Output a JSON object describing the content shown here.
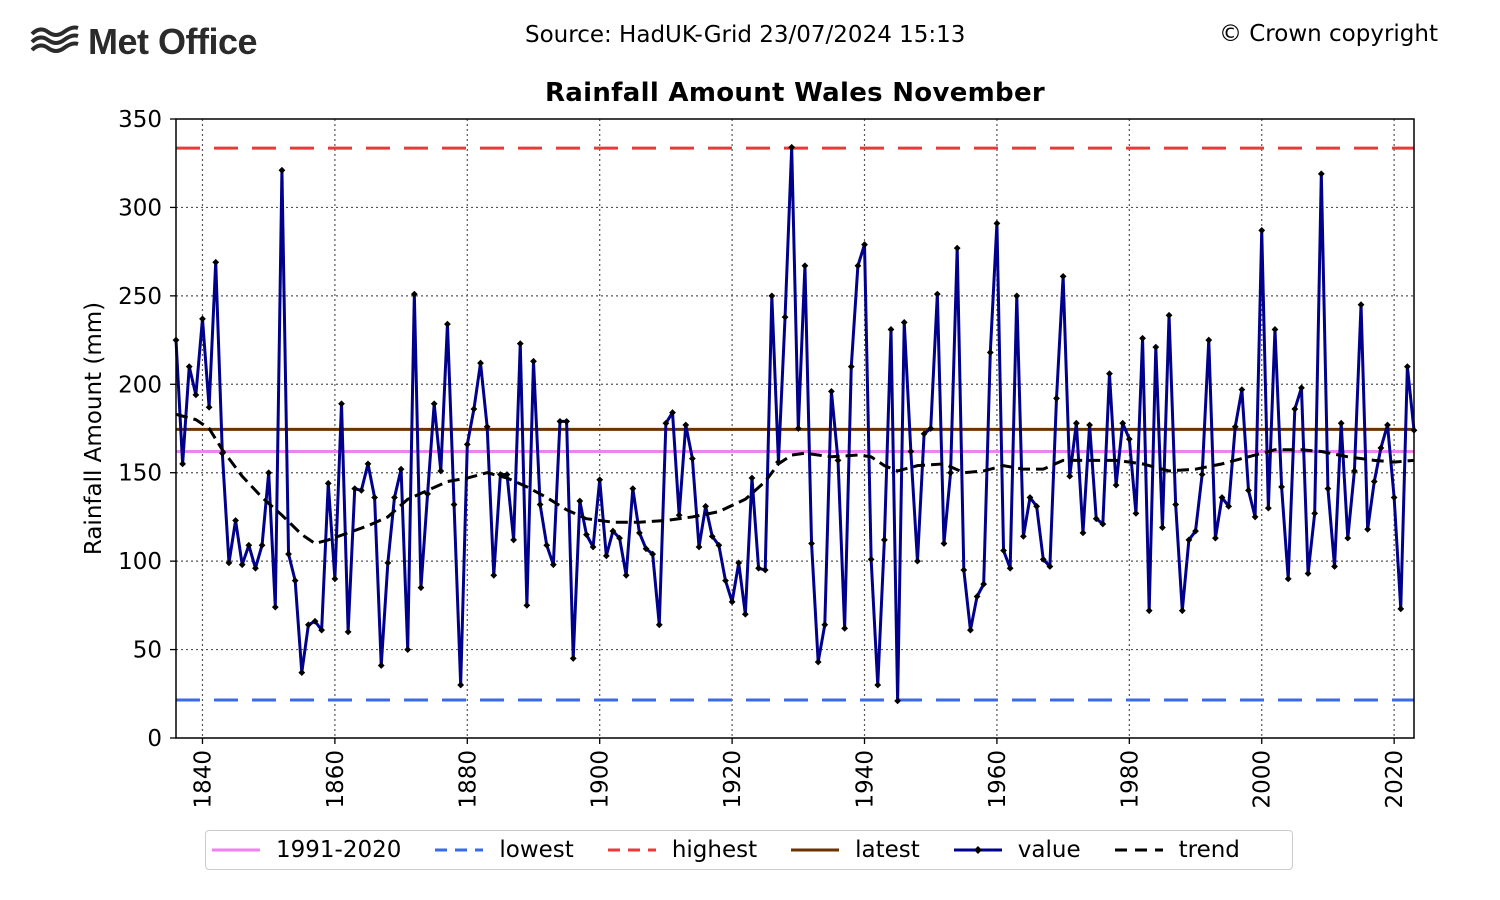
{
  "header": {
    "logo_text": "Met Office",
    "source": "Source: HadUK-Grid 23/07/2024 15:13",
    "copyright": "© Crown copyright"
  },
  "chart_data": {
    "type": "line",
    "title": "Rainfall Amount Wales November",
    "xlabel": "",
    "ylabel": "Rainfall Amount (mm)",
    "xlim": [
      1836,
      2023
    ],
    "ylim": [
      0,
      350
    ],
    "xticks": [
      1840,
      1860,
      1880,
      1900,
      1920,
      1940,
      1960,
      1980,
      2000,
      2020
    ],
    "yticks": [
      0,
      50,
      100,
      150,
      200,
      250,
      300,
      350
    ],
    "grid": true,
    "legend_position": "bottom",
    "reference_lines": [
      {
        "name": "1991-2020",
        "value": 162,
        "color": "#ee82ee",
        "style": "solid"
      },
      {
        "name": "lowest",
        "value": 21.5,
        "color": "#3a6ae6",
        "style": "dashed"
      },
      {
        "name": "highest",
        "value": 333.5,
        "color": "#e83a3a",
        "style": "dashed"
      },
      {
        "name": "latest",
        "value": 174.5,
        "color": "#6b3300",
        "style": "solid"
      }
    ],
    "series": [
      {
        "name": "value",
        "color": "#00008b",
        "start_year": 1836,
        "values": [
          225,
          155,
          210,
          194,
          237,
          187,
          269,
          161,
          99,
          123,
          98,
          109,
          96,
          109,
          150,
          74,
          321,
          104,
          89,
          37,
          64,
          66,
          61,
          144,
          90,
          189,
          60,
          141,
          140,
          155,
          136,
          41,
          99,
          136,
          152,
          50,
          251,
          85,
          138,
          189,
          151,
          234,
          132,
          30,
          166,
          186,
          212,
          176,
          92,
          149,
          149,
          112,
          223,
          75,
          213,
          132,
          109,
          98,
          179,
          179,
          45,
          134,
          115,
          108,
          146,
          103,
          117,
          113,
          92,
          141,
          116,
          107,
          104,
          64,
          178,
          184,
          126,
          177,
          158,
          108,
          131,
          114,
          109,
          89,
          77,
          99,
          70,
          147,
          96,
          95,
          250,
          156,
          238,
          334,
          175,
          267,
          110,
          43,
          64,
          196,
          157,
          62,
          210,
          267,
          279,
          101,
          30,
          112,
          231,
          21,
          235,
          162,
          100,
          172,
          175,
          251,
          110,
          150,
          277,
          95,
          61,
          80,
          87,
          218,
          291,
          106,
          96,
          250,
          114,
          136,
          131,
          101,
          97,
          192,
          261,
          148,
          178,
          116,
          177,
          124,
          121,
          206,
          143,
          178,
          169,
          127,
          226,
          72,
          221,
          119,
          239,
          132,
          72,
          112,
          117,
          149,
          225,
          113,
          136,
          131,
          176,
          197,
          140,
          125,
          287,
          130,
          231,
          142,
          90,
          186,
          198,
          93,
          127,
          319,
          141,
          97,
          178,
          113,
          151,
          245,
          118,
          145,
          164,
          177,
          136,
          73,
          210,
          174
        ]
      },
      {
        "name": "trend",
        "color": "#000000",
        "style": "dashed",
        "points": [
          [
            1836,
            183
          ],
          [
            1839,
            180
          ],
          [
            1841,
            175
          ],
          [
            1843,
            163
          ],
          [
            1846,
            148
          ],
          [
            1849,
            136
          ],
          [
            1852,
            126
          ],
          [
            1855,
            115
          ],
          [
            1857,
            110
          ],
          [
            1859,
            112
          ],
          [
            1862,
            116
          ],
          [
            1865,
            120
          ],
          [
            1868,
            125
          ],
          [
            1871,
            135
          ],
          [
            1874,
            140
          ],
          [
            1877,
            145
          ],
          [
            1880,
            147
          ],
          [
            1883,
            150
          ],
          [
            1886,
            147
          ],
          [
            1889,
            142
          ],
          [
            1892,
            136
          ],
          [
            1895,
            129
          ],
          [
            1898,
            124
          ],
          [
            1902,
            122
          ],
          [
            1906,
            122
          ],
          [
            1910,
            123
          ],
          [
            1914,
            125
          ],
          [
            1918,
            128
          ],
          [
            1922,
            135
          ],
          [
            1925,
            145
          ],
          [
            1927,
            155
          ],
          [
            1929,
            160
          ],
          [
            1931,
            161
          ],
          [
            1935,
            159
          ],
          [
            1939,
            160
          ],
          [
            1941,
            159
          ],
          [
            1943,
            154
          ],
          [
            1945,
            151
          ],
          [
            1948,
            154
          ],
          [
            1952,
            155
          ],
          [
            1955,
            150
          ],
          [
            1958,
            151
          ],
          [
            1961,
            154
          ],
          [
            1964,
            152
          ],
          [
            1967,
            152
          ],
          [
            1970,
            157
          ],
          [
            1974,
            157
          ],
          [
            1978,
            157
          ],
          [
            1982,
            155
          ],
          [
            1986,
            151
          ],
          [
            1990,
            152
          ],
          [
            1994,
            155
          ],
          [
            1998,
            159
          ],
          [
            2002,
            163
          ],
          [
            2006,
            163
          ],
          [
            2009,
            162
          ],
          [
            2013,
            159
          ],
          [
            2017,
            157
          ],
          [
            2020,
            156
          ],
          [
            2023,
            157
          ]
        ]
      }
    ]
  },
  "legend": {
    "items": [
      {
        "label": "1991-2020",
        "color": "#ee82ee",
        "style": "solid"
      },
      {
        "label": "lowest",
        "color": "#3a6ae6",
        "style": "dashed"
      },
      {
        "label": "highest",
        "color": "#e83a3a",
        "style": "dashed"
      },
      {
        "label": "latest",
        "color": "#6b3300",
        "style": "solid"
      },
      {
        "label": "value",
        "color": "#00008b",
        "style": "marker"
      },
      {
        "label": "trend",
        "color": "#000000",
        "style": "dashed"
      }
    ]
  }
}
